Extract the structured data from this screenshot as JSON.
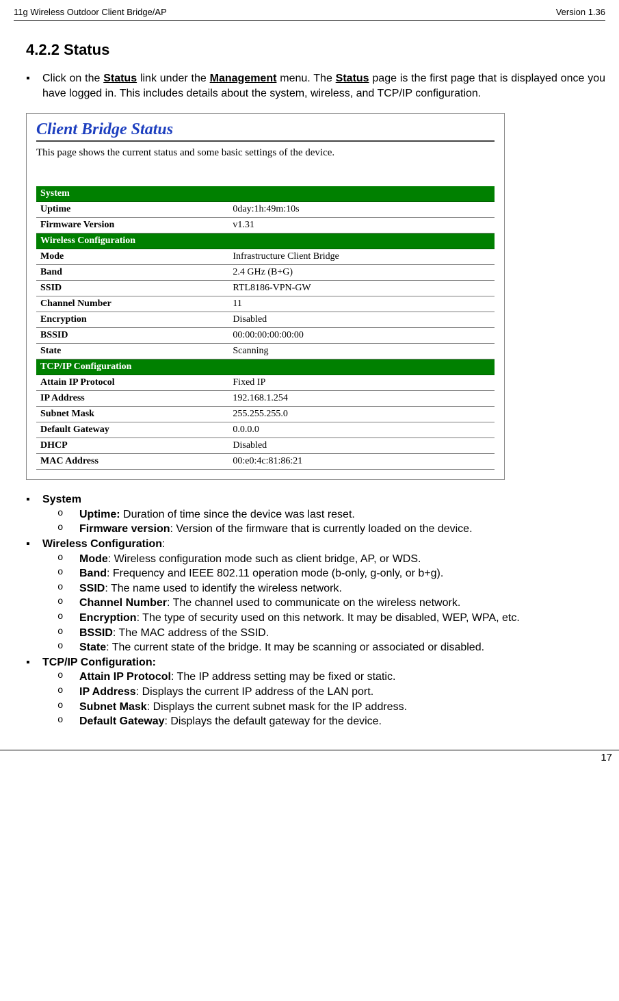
{
  "header": {
    "left": "11g Wireless Outdoor Client Bridge/AP",
    "right": "Version 1.36"
  },
  "section": {
    "number": "4.2.2",
    "title": "Status"
  },
  "intro": {
    "pre": "Click on the ",
    "link1": "Status",
    "mid1": " link under the ",
    "link2": "Management",
    "mid2": " menu. The ",
    "link3": "Status",
    "post": " page is the first page that is displayed once you have logged in. This includes details about the system, wireless, and TCP/IP configuration."
  },
  "screenshot": {
    "title": "Client Bridge Status",
    "desc": "This page shows the current status and some basic settings of the device.",
    "sections": [
      {
        "header": "System",
        "rows": [
          {
            "k": "Uptime",
            "v": "0day:1h:49m:10s"
          },
          {
            "k": "Firmware Version",
            "v": "v1.31"
          }
        ]
      },
      {
        "header": "Wireless Configuration",
        "rows": [
          {
            "k": "Mode",
            "v": "Infrastructure Client Bridge"
          },
          {
            "k": "Band",
            "v": "2.4 GHz (B+G)"
          },
          {
            "k": "SSID",
            "v": "RTL8186-VPN-GW"
          },
          {
            "k": "Channel Number",
            "v": "11"
          },
          {
            "k": "Encryption",
            "v": "Disabled"
          },
          {
            "k": "BSSID",
            "v": "00:00:00:00:00:00"
          },
          {
            "k": "State",
            "v": "Scanning"
          }
        ]
      },
      {
        "header": "TCP/IP Configuration",
        "rows": [
          {
            "k": "Attain IP Protocol",
            "v": "Fixed IP"
          },
          {
            "k": "IP Address",
            "v": "192.168.1.254"
          },
          {
            "k": "Subnet Mask",
            "v": "255.255.255.0"
          },
          {
            "k": "Default Gateway",
            "v": "0.0.0.0"
          },
          {
            "k": "DHCP",
            "v": "Disabled"
          },
          {
            "k": "MAC Address",
            "v": "00:e0:4c:81:86:21"
          }
        ]
      }
    ]
  },
  "defs": {
    "system": {
      "title": "System",
      "uptime_k": "Uptime:",
      "uptime_v": " Duration of time since the device was last reset.",
      "fw_k": "Firmware version",
      "fw_v": ": Version of the firmware that is currently loaded on the device."
    },
    "wireless": {
      "title": "Wireless Configuration",
      "colon": ":",
      "mode_k": "Mode",
      "mode_v": ": Wireless configuration mode such as client bridge, AP, or WDS.",
      "band_k": "Band",
      "band_v": ": Frequency and IEEE 802.11 operation mode (b-only, g-only, or b+g).",
      "ssid_k": "SSID",
      "ssid_v": ": The name used to identify the wireless network.",
      "chan_k": "Channel Number",
      "chan_v": ": The channel used to communicate on the wireless network.",
      "enc_k": "Encryption",
      "enc_v": ": The type of security used on this network. It may be disabled, WEP, WPA, etc.",
      "bssid_k": "BSSID",
      "bssid_v": ": The MAC address of the SSID.",
      "state_k": "State",
      "state_v": ": The current state of the bridge. It may be scanning or associated or disabled."
    },
    "tcpip": {
      "title": "TCP/IP Configuration:",
      "att_k": "Attain IP Protocol",
      "att_v": ": The IP address setting may be fixed or static.",
      "ip_k": "IP Address",
      "ip_v": ": Displays the current IP address of the LAN port.",
      "sub_k": "Subnet Mask",
      "sub_v": ": Displays the current subnet mask for the IP address.",
      "gw_k": "Default Gateway",
      "gw_v": ": Displays the default gateway for the device."
    }
  },
  "footer": {
    "pagenum": "17"
  },
  "colors": {
    "section_header_bg": "#008000",
    "section_header_fg": "#ffffff",
    "title_color": "#1d3fbf"
  }
}
